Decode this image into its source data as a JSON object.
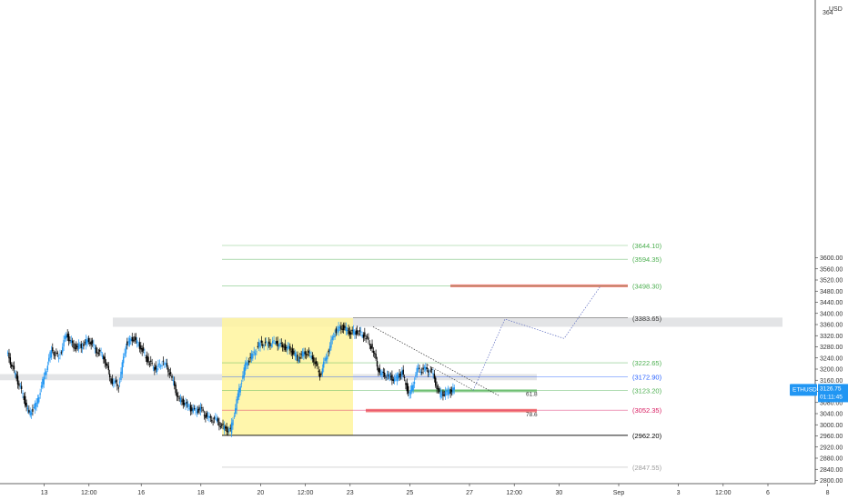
{
  "chart_data": {
    "type": "candlestick",
    "symbol": "ETHUSD",
    "currency": "USD",
    "last_price": "3126.75",
    "countdown": "01:11:45",
    "ylim": [
      2780,
      3660
    ],
    "y_ticks": [
      2800,
      2840,
      2880,
      2920,
      2960,
      3000,
      3040,
      3080,
      3120,
      3160,
      3200,
      3240,
      3280,
      3320,
      3360,
      3400,
      3440,
      3480,
      3520,
      3560,
      3600
    ],
    "y_ticks_top_partial": "364",
    "x_labels": [
      {
        "label": "13",
        "bar": 3
      },
      {
        "label": "12:00",
        "bar": 9
      },
      {
        "label": "16",
        "bar": 16
      },
      {
        "label": "18",
        "bar": 24
      },
      {
        "label": "20",
        "bar": 32
      },
      {
        "label": "12:00",
        "bar": 38
      },
      {
        "label": "23",
        "bar": 44
      },
      {
        "label": "25",
        "bar": 52
      },
      {
        "label": "27",
        "bar": 60
      },
      {
        "label": "12:00",
        "bar": 66
      },
      {
        "label": "30",
        "bar": 72
      },
      {
        "label": "Sep",
        "bar": 80
      },
      {
        "label": "3",
        "bar": 88
      },
      {
        "label": "12:00",
        "bar": 94
      },
      {
        "label": "6",
        "bar": 100
      },
      {
        "label": "8",
        "bar": 108
      }
    ],
    "candle_close_path": [
      {
        "bar": 0,
        "price": 3262
      },
      {
        "bar": 1,
        "price": 3190
      },
      {
        "bar": 2,
        "price": 3120
      },
      {
        "bar": 3,
        "price": 3038
      },
      {
        "bar": 4,
        "price": 3075
      },
      {
        "bar": 5,
        "price": 3170
      },
      {
        "bar": 6,
        "price": 3268
      },
      {
        "bar": 7,
        "price": 3242
      },
      {
        "bar": 8,
        "price": 3325
      },
      {
        "bar": 9,
        "price": 3280
      },
      {
        "bar": 10,
        "price": 3282
      },
      {
        "bar": 11,
        "price": 3306
      },
      {
        "bar": 12,
        "price": 3268
      },
      {
        "bar": 13,
        "price": 3245
      },
      {
        "bar": 14,
        "price": 3160
      },
      {
        "bar": 15,
        "price": 3140
      },
      {
        "bar": 16,
        "price": 3290
      },
      {
        "bar": 17,
        "price": 3312
      },
      {
        "bar": 18,
        "price": 3276
      },
      {
        "bar": 19,
        "price": 3227
      },
      {
        "bar": 20,
        "price": 3200
      },
      {
        "bar": 21,
        "price": 3228
      },
      {
        "bar": 22,
        "price": 3180
      },
      {
        "bar": 23,
        "price": 3094
      },
      {
        "bar": 24,
        "price": 3074
      },
      {
        "bar": 25,
        "price": 3050
      },
      {
        "bar": 26,
        "price": 3055
      },
      {
        "bar": 27,
        "price": 3022
      },
      {
        "bar": 28,
        "price": 3018
      },
      {
        "bar": 29,
        "price": 2990
      },
      {
        "bar": 30,
        "price": 2978
      },
      {
        "bar": 31,
        "price": 3105
      },
      {
        "bar": 32,
        "price": 3215
      },
      {
        "bar": 33,
        "price": 3252
      },
      {
        "bar": 34,
        "price": 3293
      },
      {
        "bar": 35,
        "price": 3290
      },
      {
        "bar": 36,
        "price": 3296
      },
      {
        "bar": 37,
        "price": 3282
      },
      {
        "bar": 38,
        "price": 3272
      },
      {
        "bar": 39,
        "price": 3237
      },
      {
        "bar": 40,
        "price": 3262
      },
      {
        "bar": 41,
        "price": 3245
      },
      {
        "bar": 42,
        "price": 3180
      },
      {
        "bar": 43,
        "price": 3258
      },
      {
        "bar": 44,
        "price": 3336
      },
      {
        "bar": 45,
        "price": 3352
      },
      {
        "bar": 46,
        "price": 3331
      },
      {
        "bar": 47,
        "price": 3333
      },
      {
        "bar": 48,
        "price": 3320
      },
      {
        "bar": 49,
        "price": 3275
      },
      {
        "bar": 50,
        "price": 3185
      },
      {
        "bar": 51,
        "price": 3178
      },
      {
        "bar": 52,
        "price": 3162
      },
      {
        "bar": 53,
        "price": 3188
      },
      {
        "bar": 54,
        "price": 3102
      },
      {
        "bar": 55,
        "price": 3195
      },
      {
        "bar": 56,
        "price": 3198
      },
      {
        "bar": 57,
        "price": 3190
      },
      {
        "bar": 58,
        "price": 3108
      },
      {
        "bar": 59,
        "price": 3115
      },
      {
        "bar": 60,
        "price": 3127
      }
    ],
    "levels": [
      {
        "label": "(3644.10)",
        "price": 3644.1,
        "color": "#4caf50"
      },
      {
        "label": "(3594.35)",
        "price": 3594.35,
        "color": "#4caf50"
      },
      {
        "label": "(3498.30)",
        "price": 3498.3,
        "color": "#4caf50"
      },
      {
        "label": "(3383.65)",
        "price": 3383.65,
        "color": "#333333"
      },
      {
        "label": "(3222.65)",
        "price": 3222.65,
        "color": "#4caf50"
      },
      {
        "label": "(3172.90)",
        "price": 3172.9,
        "color": "#2962ff"
      },
      {
        "label": "(3123.20)",
        "price": 3123.2,
        "color": "#4caf50"
      },
      {
        "label": "(3052.35)",
        "price": 3052.35,
        "color": "#d81b60"
      },
      {
        "label": "(2962.20)",
        "price": 2962.2,
        "color": "#000000"
      },
      {
        "label": "(2847.55)",
        "price": 2847.55,
        "color": "#9e9e9e"
      }
    ],
    "fib_labels": [
      {
        "label": "61.8",
        "price": 3113
      },
      {
        "label": "78.6",
        "price": 3040
      }
    ],
    "zones": [
      {
        "kind": "resistance",
        "from": 3352,
        "to": 3385,
        "color": "#b0b3b8"
      },
      {
        "kind": "support",
        "from": 3160,
        "to": 3182,
        "color": "#b0b3b8"
      },
      {
        "kind": "target",
        "from": 3494,
        "to": 3504,
        "color": "#ef5350"
      },
      {
        "kind": "entry",
        "from": 3117,
        "to": 3127,
        "color": "#66bb6a"
      },
      {
        "kind": "stop",
        "from": 3045,
        "to": 3057,
        "color": "#ef5350"
      },
      {
        "kind": "range",
        "from": 2962.2,
        "to": 3383.65,
        "color": "#fff59d"
      }
    ],
    "projection_path_prices": [
      3123.2,
      3380,
      3310,
      3498.3
    ],
    "colors": {
      "up": "#2196f3",
      "down": "#000000",
      "axis": "#333333"
    }
  }
}
